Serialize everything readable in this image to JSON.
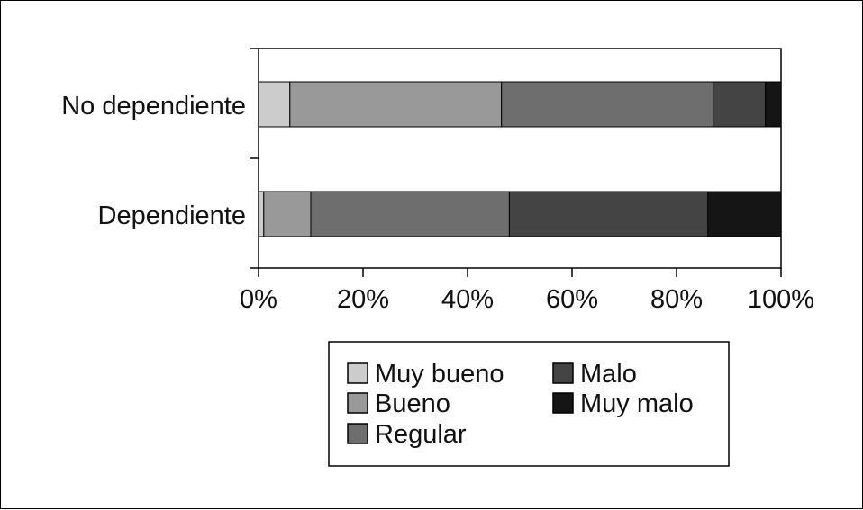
{
  "chart_data": {
    "type": "bar",
    "orientation": "horizontal",
    "stacked": true,
    "categories": [
      "No dependiente",
      "Dependiente"
    ],
    "series": [
      {
        "name": "Muy bueno",
        "color": "#cccccc",
        "values": [
          6,
          1
        ]
      },
      {
        "name": "Bueno",
        "color": "#999999",
        "values": [
          40.5,
          9
        ]
      },
      {
        "name": "Regular",
        "color": "#6e6e6e",
        "values": [
          40.5,
          38
        ]
      },
      {
        "name": "Malo",
        "color": "#444444",
        "values": [
          10,
          38
        ]
      },
      {
        "name": "Muy malo",
        "color": "#151515",
        "values": [
          3,
          14
        ]
      }
    ],
    "x_ticks": [
      "0%",
      "20%",
      "40%",
      "60%",
      "80%",
      "100%"
    ],
    "xlim": [
      0,
      100
    ],
    "grid": false,
    "legend_position": "bottom-center"
  }
}
